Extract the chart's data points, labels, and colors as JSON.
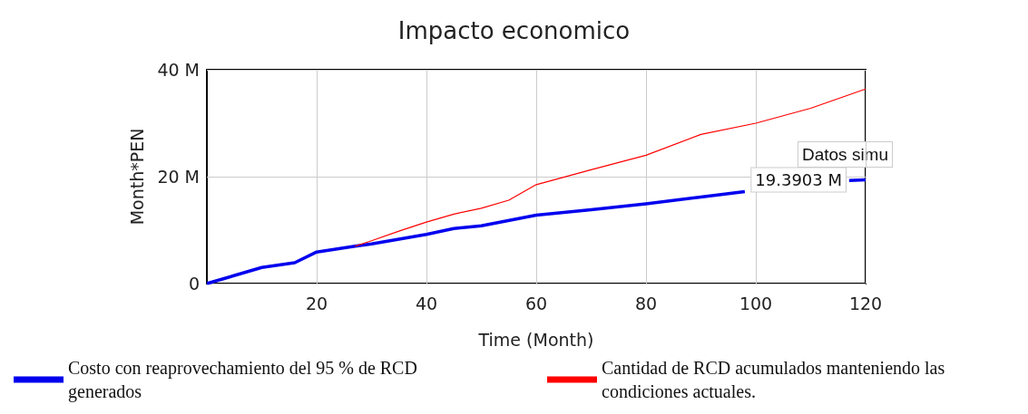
{
  "chart_data": {
    "type": "line",
    "title": "Impacto economico",
    "xlabel": "Time (Month)",
    "ylabel": "Month*PEN",
    "xlim": [
      0,
      120
    ],
    "xticks": [
      20,
      40,
      60,
      80,
      100,
      120
    ],
    "ylim": [
      0,
      40
    ],
    "yticks": [
      0,
      {
        "value": 20,
        "label": "20 M"
      },
      {
        "value": 40,
        "label": "40 M"
      }
    ],
    "grid": true,
    "legend": "bottom",
    "marker": "none",
    "line_style": "solid",
    "series": [
      {
        "name": "Costo con reaprovechamiento del 95 % de RCD generados",
        "color": "#0000ee",
        "x": [
          0,
          10,
          16,
          20,
          27,
          30,
          40,
          45,
          50,
          60,
          70,
          80,
          90,
          98,
          110,
          117,
          120
        ],
        "values": [
          0,
          3.0,
          3.9,
          5.9,
          7.0,
          7.4,
          9.2,
          10.3,
          10.8,
          12.8,
          13.8,
          14.9,
          16.2,
          17.2,
          null,
          19.3,
          19.3903
        ]
      },
      {
        "name": "Cantidad de RCD acumulados manteniendo las condiciones actuales.",
        "color": "#ff0000",
        "x": [
          27,
          30,
          35,
          40,
          45,
          50,
          55,
          60,
          70,
          80,
          90,
          100,
          110,
          120
        ],
        "values": [
          7.0,
          8.0,
          9.8,
          11.5,
          13.0,
          14.1,
          15.6,
          18.5,
          21.3,
          24.0,
          27.9,
          30.0,
          32.8,
          36.4
        ]
      }
    ],
    "annotations": [
      {
        "text": "19.3903 M",
        "x": 120,
        "y": 19.3903
      },
      "Datos simu"
    ]
  }
}
